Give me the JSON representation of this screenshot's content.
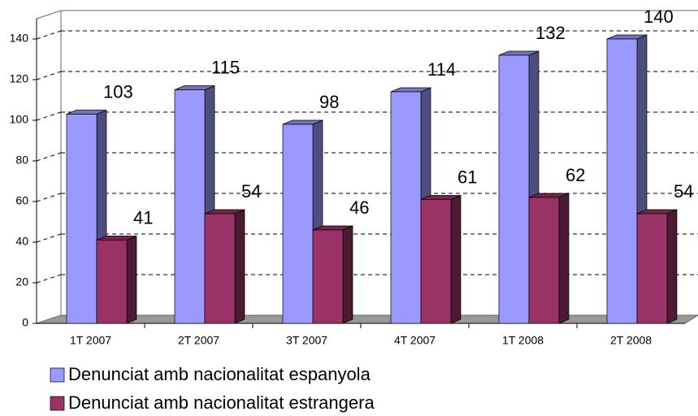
{
  "chart_data": {
    "type": "bar3d",
    "categories": [
      "1T 2007",
      "2T 2007",
      "3T 2007",
      "4T 2007",
      "1T 2008",
      "2T 2008"
    ],
    "series": [
      {
        "name": "Denunciat amb nacionalitat espanyola",
        "color": "#9999ff",
        "values": [
          103,
          115,
          98,
          114,
          132,
          140
        ]
      },
      {
        "name": "Denunciat amb nacionalitat estrangera",
        "color": "#993366",
        "values": [
          41,
          54,
          46,
          61,
          62,
          54
        ]
      }
    ],
    "ylim": [
      0,
      150
    ],
    "yticks": [
      0,
      20,
      40,
      60,
      80,
      100,
      120,
      140
    ],
    "grid": true
  }
}
